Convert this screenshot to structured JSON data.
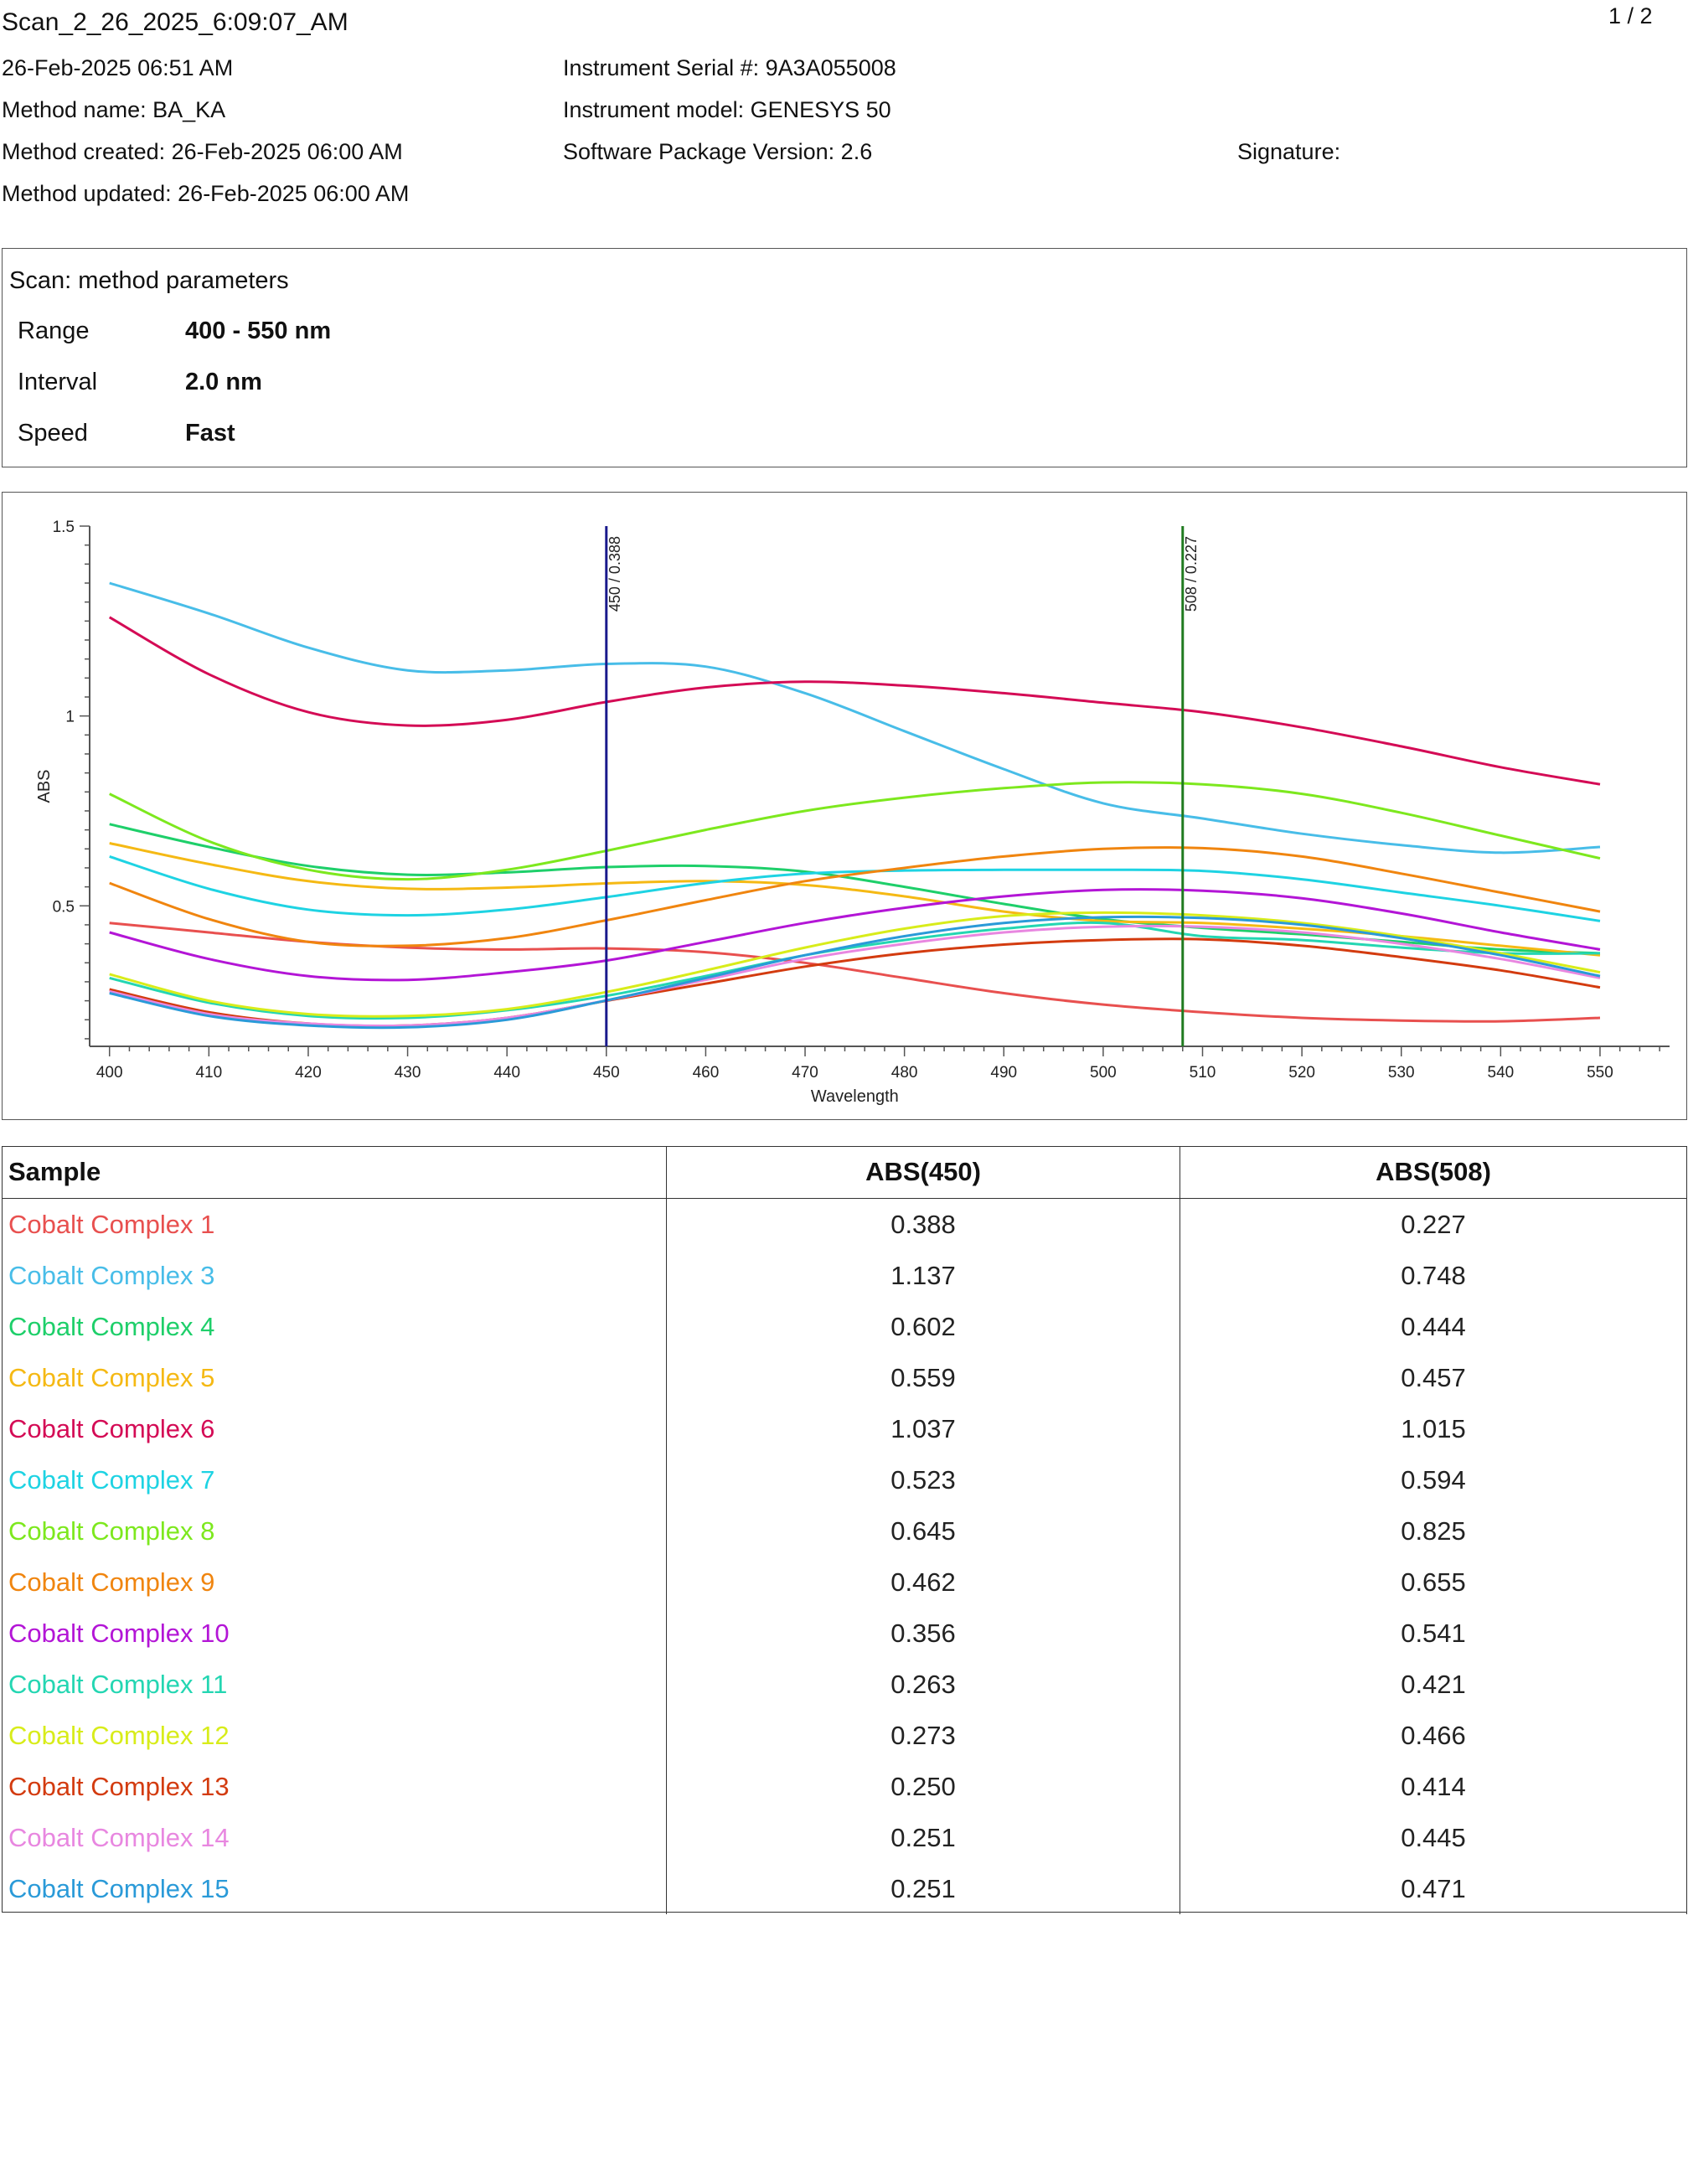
{
  "header": {
    "scan_name": "Scan_2_26_2025_6:09:07_AM",
    "page": "1 / 2",
    "datetime": "26-Feb-2025 06:51 AM",
    "method_name": "Method name: BA_KA",
    "method_created": "Method created: 26-Feb-2025 06:00 AM",
    "method_updated": "Method updated: 26-Feb-2025 06:00 AM",
    "serial": "Instrument Serial #: 9A3A055008",
    "model": "Instrument model: GENESYS 50",
    "software": "Software Package Version: 2.6",
    "signature": "Signature:"
  },
  "params": {
    "title": "Scan: method parameters",
    "rows": [
      {
        "label": "Range",
        "value": "400 - 550 nm"
      },
      {
        "label": "Interval",
        "value": "2.0 nm"
      },
      {
        "label": "Speed",
        "value": "Fast"
      }
    ]
  },
  "chart_data": {
    "type": "line",
    "xlabel": "Wavelength",
    "ylabel": "ABS",
    "xlim": [
      398,
      557
    ],
    "ylim": [
      0.13,
      1.5
    ],
    "xticks": [
      400,
      410,
      420,
      430,
      440,
      450,
      460,
      470,
      480,
      490,
      500,
      510,
      520,
      530,
      540,
      550
    ],
    "yticks": [
      0.5,
      1,
      1.5
    ],
    "ytick_labels": [
      "0.5",
      "1",
      "1.5"
    ],
    "grid": false,
    "markers": [
      {
        "x": 450,
        "label": "450 / 0.388",
        "color": "#1a1a8c"
      },
      {
        "x": 508,
        "label": "508 / 0.227",
        "color": "#1f7a1f"
      }
    ],
    "x": [
      400,
      410,
      420,
      430,
      440,
      450,
      460,
      470,
      480,
      490,
      500,
      510,
      520,
      530,
      540,
      550
    ],
    "series": [
      {
        "name": "Cobalt Complex 1",
        "color": "#e8504f",
        "values": [
          0.455,
          0.43,
          0.405,
          0.39,
          0.385,
          0.388,
          0.378,
          0.35,
          0.31,
          0.27,
          0.24,
          0.22,
          0.205,
          0.198,
          0.196,
          0.205
        ]
      },
      {
        "name": "Cobalt Complex 3",
        "color": "#48bde8",
        "values": [
          1.35,
          1.27,
          1.18,
          1.12,
          1.12,
          1.137,
          1.13,
          1.06,
          0.96,
          0.86,
          0.77,
          0.73,
          0.69,
          0.66,
          0.64,
          0.655
        ]
      },
      {
        "name": "Cobalt Complex 4",
        "color": "#1ecf6a",
        "values": [
          0.715,
          0.655,
          0.605,
          0.582,
          0.588,
          0.602,
          0.605,
          0.59,
          0.55,
          0.505,
          0.465,
          0.442,
          0.425,
          0.405,
          0.385,
          0.375
        ]
      },
      {
        "name": "Cobalt Complex 5",
        "color": "#f5b914",
        "values": [
          0.665,
          0.61,
          0.565,
          0.545,
          0.548,
          0.559,
          0.565,
          0.555,
          0.525,
          0.485,
          0.46,
          0.455,
          0.44,
          0.42,
          0.395,
          0.37
        ]
      },
      {
        "name": "Cobalt Complex 6",
        "color": "#d40b55",
        "values": [
          1.26,
          1.11,
          1.01,
          0.975,
          0.99,
          1.037,
          1.075,
          1.09,
          1.08,
          1.06,
          1.035,
          1.01,
          0.97,
          0.92,
          0.865,
          0.82
        ]
      },
      {
        "name": "Cobalt Complex 7",
        "color": "#1ed3e3",
        "values": [
          0.63,
          0.545,
          0.49,
          0.475,
          0.49,
          0.523,
          0.56,
          0.585,
          0.593,
          0.595,
          0.595,
          0.592,
          0.57,
          0.535,
          0.5,
          0.46
        ]
      },
      {
        "name": "Cobalt Complex 8",
        "color": "#7de81e",
        "values": [
          0.795,
          0.67,
          0.595,
          0.57,
          0.595,
          0.645,
          0.7,
          0.75,
          0.785,
          0.81,
          0.825,
          0.82,
          0.795,
          0.745,
          0.685,
          0.625
        ]
      },
      {
        "name": "Cobalt Complex 9",
        "color": "#f0850f",
        "values": [
          0.56,
          0.465,
          0.405,
          0.395,
          0.415,
          0.462,
          0.515,
          0.565,
          0.6,
          0.63,
          0.65,
          0.652,
          0.63,
          0.585,
          0.535,
          0.485
        ]
      },
      {
        "name": "Cobalt Complex 10",
        "color": "#b315d6",
        "values": [
          0.43,
          0.36,
          0.315,
          0.305,
          0.325,
          0.356,
          0.405,
          0.455,
          0.495,
          0.525,
          0.542,
          0.54,
          0.52,
          0.48,
          0.43,
          0.385
        ]
      },
      {
        "name": "Cobalt Complex 11",
        "color": "#24d6b2",
        "values": [
          0.31,
          0.245,
          0.21,
          0.205,
          0.225,
          0.263,
          0.315,
          0.37,
          0.41,
          0.44,
          0.455,
          0.42,
          0.41,
          0.39,
          0.375,
          0.375
        ]
      },
      {
        "name": "Cobalt Complex 12",
        "color": "#d8ec1a",
        "values": [
          0.32,
          0.25,
          0.215,
          0.21,
          0.228,
          0.273,
          0.33,
          0.39,
          0.44,
          0.473,
          0.482,
          0.475,
          0.455,
          0.42,
          0.375,
          0.325
        ]
      },
      {
        "name": "Cobalt Complex 13",
        "color": "#d33b0f",
        "values": [
          0.28,
          0.22,
          0.19,
          0.185,
          0.205,
          0.25,
          0.295,
          0.34,
          0.375,
          0.398,
          0.41,
          0.412,
          0.395,
          0.365,
          0.33,
          0.285
        ]
      },
      {
        "name": "Cobalt Complex 14",
        "color": "#e887e0",
        "values": [
          0.275,
          0.215,
          0.19,
          0.185,
          0.205,
          0.251,
          0.305,
          0.36,
          0.4,
          0.43,
          0.445,
          0.445,
          0.43,
          0.4,
          0.36,
          0.31
        ]
      },
      {
        "name": "Cobalt Complex 15",
        "color": "#2a9ad8",
        "values": [
          0.27,
          0.21,
          0.185,
          0.18,
          0.2,
          0.251,
          0.31,
          0.37,
          0.42,
          0.455,
          0.47,
          0.468,
          0.45,
          0.415,
          0.37,
          0.315
        ]
      }
    ]
  },
  "table": {
    "headers": [
      "Sample",
      "ABS(450)",
      "ABS(508)"
    ],
    "rows": [
      {
        "sample": "Cobalt Complex 1",
        "color": "#e8504f",
        "abs450": "0.388",
        "abs508": "0.227"
      },
      {
        "sample": "Cobalt Complex 3",
        "color": "#48bde8",
        "abs450": "1.137",
        "abs508": "0.748"
      },
      {
        "sample": "Cobalt Complex 4",
        "color": "#1ecf6a",
        "abs450": "0.602",
        "abs508": "0.444"
      },
      {
        "sample": "Cobalt Complex 5",
        "color": "#f5b914",
        "abs450": "0.559",
        "abs508": "0.457"
      },
      {
        "sample": "Cobalt Complex 6",
        "color": "#d40b55",
        "abs450": "1.037",
        "abs508": "1.015"
      },
      {
        "sample": "Cobalt Complex 7",
        "color": "#1ed3e3",
        "abs450": "0.523",
        "abs508": "0.594"
      },
      {
        "sample": "Cobalt Complex 8",
        "color": "#7de81e",
        "abs450": "0.645",
        "abs508": "0.825"
      },
      {
        "sample": "Cobalt Complex 9",
        "color": "#f0850f",
        "abs450": "0.462",
        "abs508": "0.655"
      },
      {
        "sample": "Cobalt Complex 10",
        "color": "#b315d6",
        "abs450": "0.356",
        "abs508": "0.541"
      },
      {
        "sample": "Cobalt Complex 11",
        "color": "#24d6b2",
        "abs450": "0.263",
        "abs508": "0.421"
      },
      {
        "sample": "Cobalt Complex 12",
        "color": "#d8ec1a",
        "abs450": "0.273",
        "abs508": "0.466"
      },
      {
        "sample": "Cobalt Complex 13",
        "color": "#d33b0f",
        "abs450": "0.250",
        "abs508": "0.414"
      },
      {
        "sample": "Cobalt Complex 14",
        "color": "#e887e0",
        "abs450": "0.251",
        "abs508": "0.445"
      },
      {
        "sample": "Cobalt Complex 15",
        "color": "#2a9ad8",
        "abs450": "0.251",
        "abs508": "0.471"
      }
    ]
  }
}
